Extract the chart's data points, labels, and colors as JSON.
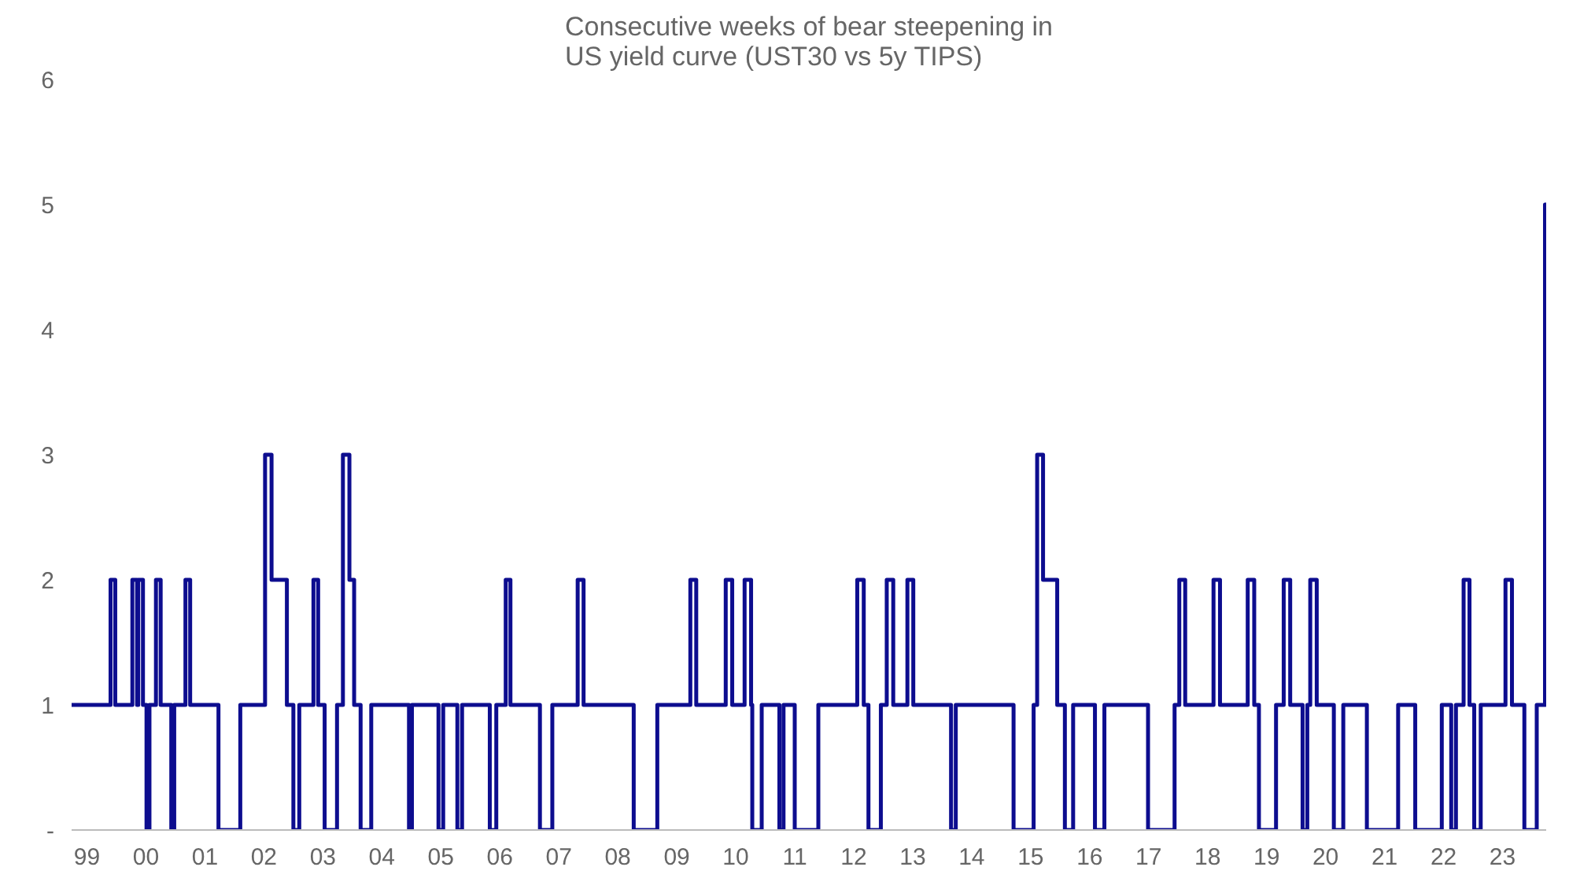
{
  "chart_data": {
    "type": "step",
    "title": "Consecutive weeks of bear steepening in\nUS yield curve (UST30 vs 5y TIPS)",
    "x": [
      1998.74,
      1999.4,
      1999.48,
      1999.77,
      1999.85,
      1999.87,
      1999.95,
      2000.01,
      2000.06,
      2000.17,
      2000.25,
      2000.43,
      2000.48,
      2000.67,
      2000.75,
      2001.23,
      2001.6,
      2002.02,
      2002.13,
      2002.39,
      2002.5,
      2002.6,
      2002.84,
      2002.92,
      2003.03,
      2003.24,
      2003.34,
      2003.45,
      2003.53,
      2003.64,
      2003.82,
      2004.46,
      2004.51,
      2004.96,
      2005.04,
      2005.28,
      2005.36,
      2005.83,
      2005.94,
      2006.1,
      2006.18,
      2006.68,
      2006.89,
      2007.32,
      2007.42,
      2008.27,
      2008.67,
      2009.23,
      2009.33,
      2009.83,
      2009.94,
      2010.15,
      2010.26,
      2010.28,
      2010.44,
      2010.74,
      2010.81,
      2011.0,
      2011.4,
      2012.06,
      2012.17,
      2012.25,
      2012.46,
      2012.56,
      2012.67,
      2012.91,
      2013.01,
      2013.65,
      2013.73,
      2014.71,
      2015.05,
      2015.11,
      2015.21,
      2015.45,
      2015.58,
      2015.72,
      2016.09,
      2016.25,
      2016.99,
      2017.44,
      2017.52,
      2017.62,
      2018.1,
      2018.21,
      2018.68,
      2018.79,
      2018.87,
      2019.16,
      2019.29,
      2019.4,
      2019.61,
      2019.69,
      2019.74,
      2019.85,
      2020.14,
      2020.3,
      2020.7,
      2021.23,
      2021.52,
      2021.97,
      2022.13,
      2022.21,
      2022.34,
      2022.44,
      2022.52,
      2022.63,
      2023.05,
      2023.16,
      2023.37,
      2023.58,
      2023.72,
      2023.74
    ],
    "series": [
      {
        "color": "#0d0d8f",
        "values": [
          1,
          2,
          1,
          2,
          1,
          2,
          1,
          0,
          1,
          2,
          1,
          0,
          1,
          2,
          1,
          0,
          1,
          3,
          2,
          1,
          0,
          1,
          2,
          1,
          0,
          1,
          3,
          2,
          1,
          0,
          1,
          0,
          1,
          0,
          1,
          0,
          1,
          0,
          1,
          2,
          1,
          0,
          1,
          2,
          1,
          0,
          1,
          2,
          1,
          2,
          1,
          2,
          1,
          0,
          1,
          0,
          1,
          0,
          1,
          2,
          1,
          0,
          1,
          2,
          1,
          2,
          1,
          0,
          1,
          0,
          1,
          3,
          2,
          1,
          0,
          1,
          0,
          1,
          0,
          1,
          2,
          1,
          2,
          1,
          2,
          1,
          0,
          1,
          2,
          1,
          0,
          1,
          2,
          1,
          0,
          1,
          0,
          1,
          0,
          1,
          0,
          1,
          2,
          1,
          0,
          1,
          2,
          1,
          0,
          1,
          5,
          5
        ]
      }
    ],
    "xticks": [
      {
        "value": 1999,
        "label": "99"
      },
      {
        "value": 2000,
        "label": "00"
      },
      {
        "value": 2001,
        "label": "01"
      },
      {
        "value": 2002,
        "label": "02"
      },
      {
        "value": 2003,
        "label": "03"
      },
      {
        "value": 2004,
        "label": "04"
      },
      {
        "value": 2005,
        "label": "05"
      },
      {
        "value": 2006,
        "label": "06"
      },
      {
        "value": 2007,
        "label": "07"
      },
      {
        "value": 2008,
        "label": "08"
      },
      {
        "value": 2009,
        "label": "09"
      },
      {
        "value": 2010,
        "label": "10"
      },
      {
        "value": 2011,
        "label": "11"
      },
      {
        "value": 2012,
        "label": "12"
      },
      {
        "value": 2013,
        "label": "13"
      },
      {
        "value": 2014,
        "label": "14"
      },
      {
        "value": 2015,
        "label": "15"
      },
      {
        "value": 2016,
        "label": "16"
      },
      {
        "value": 2017,
        "label": "17"
      },
      {
        "value": 2018,
        "label": "18"
      },
      {
        "value": 2019,
        "label": "19"
      },
      {
        "value": 2020,
        "label": "20"
      },
      {
        "value": 2021,
        "label": "21"
      },
      {
        "value": 2022,
        "label": "22"
      },
      {
        "value": 2023,
        "label": "23"
      }
    ],
    "xlim": [
      1998.74,
      2023.74
    ],
    "ylim": [
      0,
      6
    ],
    "yticks": [
      {
        "value": 0,
        "label": "-"
      },
      1,
      2,
      3,
      4,
      5,
      6
    ],
    "grid": false,
    "line_style": "solid",
    "marker": "none"
  }
}
